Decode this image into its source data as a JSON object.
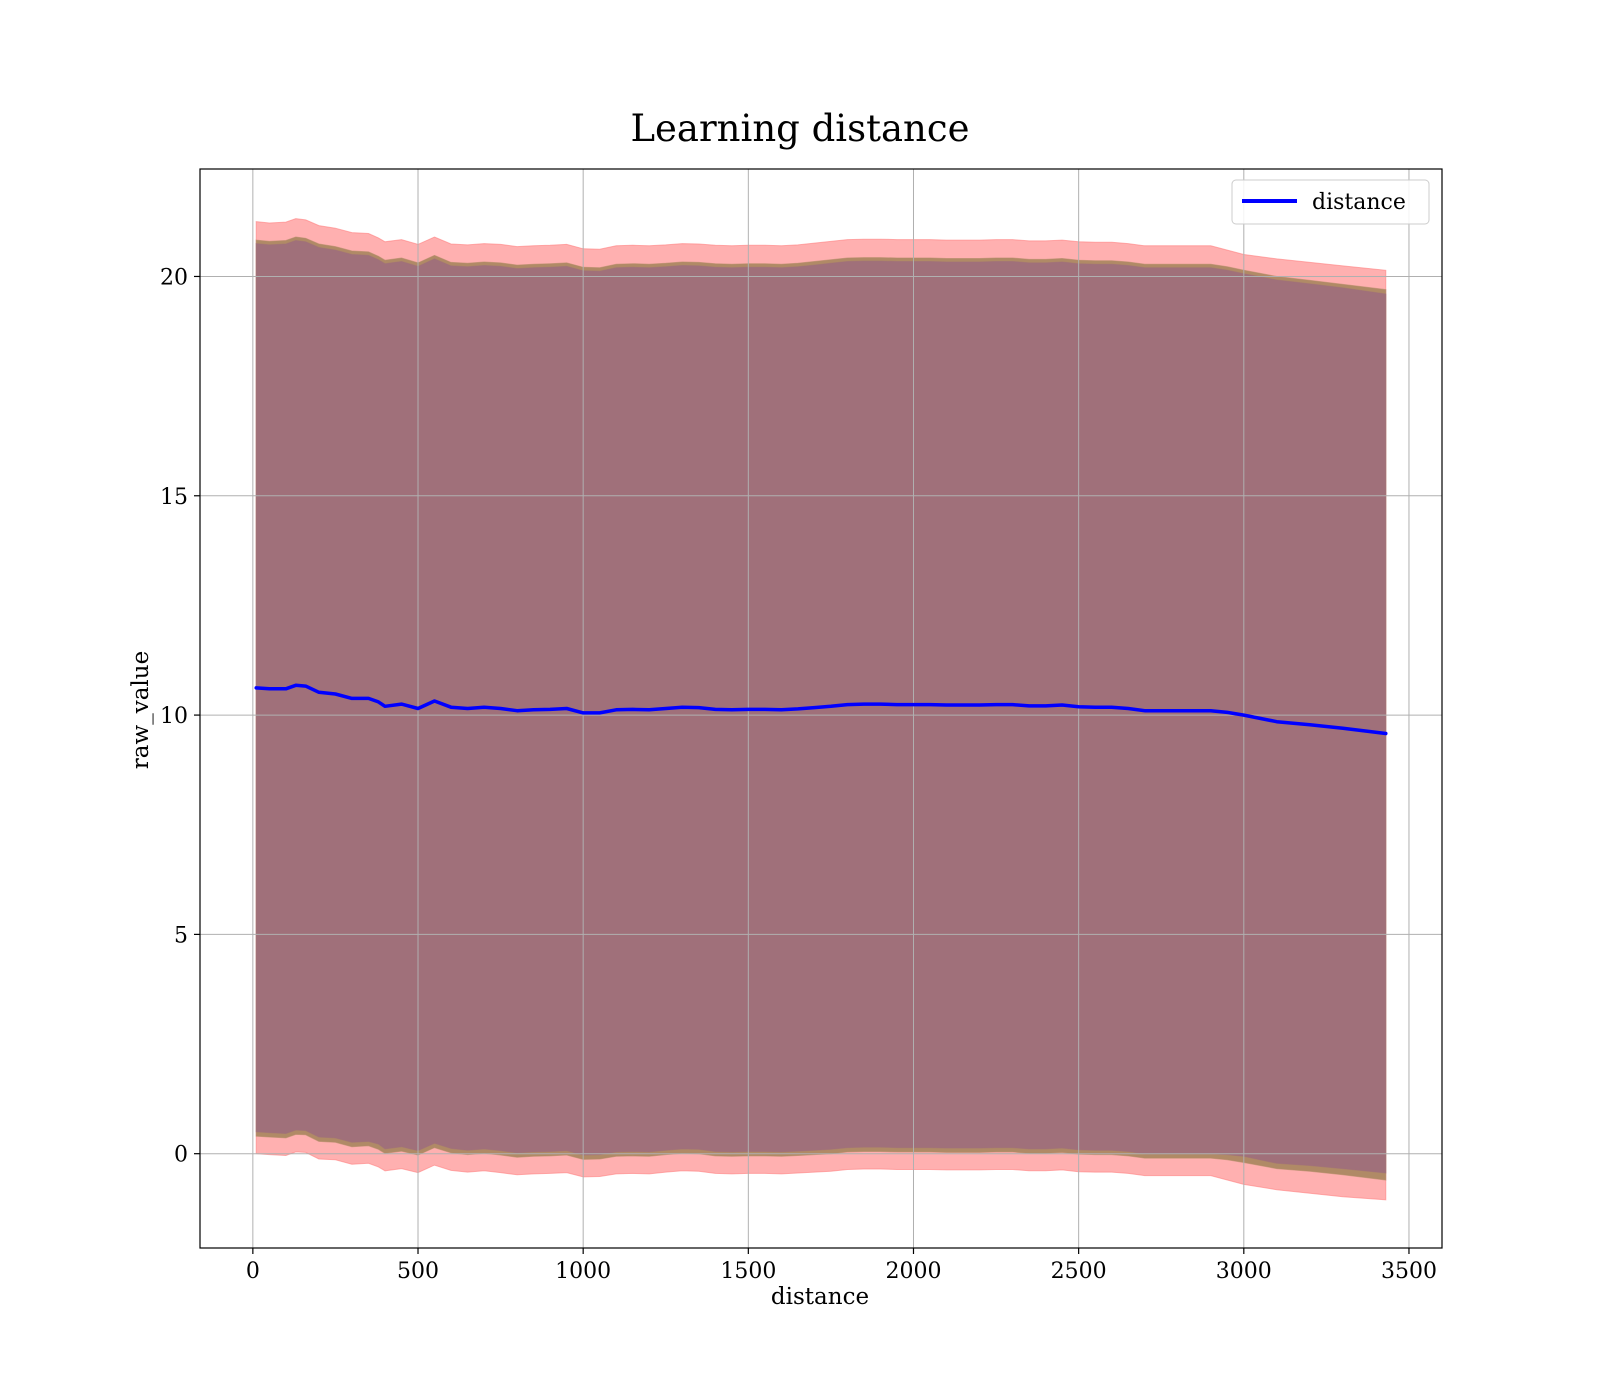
{
  "chart_data": {
    "type": "line",
    "title": "Learning distance",
    "xlabel": "distance",
    "ylabel": "raw_value",
    "xlim": [
      -160,
      3600
    ],
    "ylim": [
      -2.15,
      22.45
    ],
    "xticks": [
      0,
      500,
      1000,
      1500,
      2000,
      2500,
      3000,
      3500
    ],
    "yticks": [
      0,
      5,
      10,
      15,
      20
    ],
    "xtick_labels": [
      "0",
      "500",
      "1000",
      "1500",
      "2000",
      "2500",
      "3000",
      "3500"
    ],
    "ytick_labels": [
      "0",
      "5",
      "10",
      "15",
      "20"
    ],
    "grid": true,
    "legend": {
      "position": "top-right",
      "entries": [
        "distance"
      ]
    },
    "colors": {
      "line": "#0000ff",
      "outer_band": "#ff7f7f",
      "middle_band": "#b08a66",
      "inner_band": "#a0707a"
    },
    "series": [
      {
        "name": "distance",
        "x": [
          10,
          50,
          100,
          130,
          160,
          200,
          250,
          300,
          350,
          380,
          400,
          450,
          500,
          550,
          600,
          650,
          700,
          750,
          800,
          850,
          900,
          950,
          1000,
          1050,
          1100,
          1150,
          1200,
          1250,
          1300,
          1350,
          1400,
          1450,
          1500,
          1550,
          1600,
          1650,
          1700,
          1750,
          1800,
          1850,
          1900,
          1950,
          2000,
          2050,
          2100,
          2150,
          2200,
          2250,
          2300,
          2350,
          2400,
          2450,
          2500,
          2550,
          2600,
          2650,
          2700,
          2750,
          2800,
          2850,
          2900,
          2950,
          3000,
          3100,
          3200,
          3300,
          3430
        ],
        "y": [
          10.62,
          10.6,
          10.6,
          10.68,
          10.66,
          10.52,
          10.48,
          10.38,
          10.38,
          10.3,
          10.2,
          10.25,
          10.15,
          10.32,
          10.18,
          10.15,
          10.18,
          10.15,
          10.1,
          10.12,
          10.13,
          10.15,
          10.05,
          10.05,
          10.12,
          10.13,
          10.12,
          10.15,
          10.18,
          10.17,
          10.13,
          10.12,
          10.13,
          10.13,
          10.12,
          10.14,
          10.17,
          10.2,
          10.24,
          10.25,
          10.25,
          10.24,
          10.24,
          10.24,
          10.23,
          10.23,
          10.23,
          10.24,
          10.24,
          10.21,
          10.21,
          10.23,
          10.19,
          10.18,
          10.18,
          10.15,
          10.1,
          10.1,
          10.1,
          10.1,
          10.1,
          10.06,
          10.0,
          9.85,
          9.78,
          9.7,
          9.58
        ],
        "upper_inner": [
          20.75,
          20.72,
          20.74,
          20.82,
          20.79,
          20.66,
          20.6,
          20.5,
          20.48,
          20.38,
          20.29,
          20.34,
          20.23,
          20.4,
          20.24,
          20.22,
          20.25,
          20.23,
          20.18,
          20.2,
          20.21,
          20.23,
          20.13,
          20.12,
          20.2,
          20.21,
          20.2,
          20.22,
          20.25,
          20.24,
          20.21,
          20.2,
          20.21,
          20.21,
          20.2,
          20.22,
          20.26,
          20.3,
          20.34,
          20.35,
          20.35,
          20.34,
          20.34,
          20.34,
          20.33,
          20.33,
          20.33,
          20.34,
          20.34,
          20.31,
          20.31,
          20.33,
          20.29,
          20.28,
          20.28,
          20.25,
          20.2,
          20.2,
          20.2,
          20.2,
          20.2,
          20.14,
          20.06,
          19.92,
          19.83,
          19.74,
          19.6
        ],
        "lower_inner": [
          0.5,
          0.48,
          0.46,
          0.54,
          0.53,
          0.38,
          0.36,
          0.26,
          0.28,
          0.22,
          0.11,
          0.16,
          0.07,
          0.24,
          0.12,
          0.08,
          0.11,
          0.07,
          0.02,
          0.04,
          0.05,
          0.07,
          -0.03,
          -0.02,
          0.04,
          0.05,
          0.04,
          0.08,
          0.11,
          0.1,
          0.05,
          0.04,
          0.05,
          0.05,
          0.04,
          0.06,
          0.08,
          0.1,
          0.14,
          0.15,
          0.15,
          0.14,
          0.14,
          0.14,
          0.13,
          0.13,
          0.13,
          0.14,
          0.14,
          0.11,
          0.11,
          0.13,
          0.09,
          0.08,
          0.08,
          0.05,
          0.0,
          0.0,
          0.0,
          0.0,
          0.0,
          -0.02,
          -0.06,
          -0.22,
          -0.27,
          -0.34,
          -0.44
        ],
        "upper_middle": [
          20.83,
          20.8,
          20.82,
          20.9,
          20.87,
          20.74,
          20.68,
          20.58,
          20.56,
          20.46,
          20.37,
          20.42,
          20.31,
          20.48,
          20.32,
          20.3,
          20.33,
          20.31,
          20.26,
          20.28,
          20.29,
          20.31,
          20.21,
          20.2,
          20.28,
          20.29,
          20.28,
          20.3,
          20.33,
          20.32,
          20.29,
          20.28,
          20.29,
          20.29,
          20.28,
          20.3,
          20.34,
          20.38,
          20.42,
          20.43,
          20.43,
          20.42,
          20.42,
          20.42,
          20.41,
          20.41,
          20.41,
          20.42,
          20.42,
          20.39,
          20.39,
          20.41,
          20.37,
          20.36,
          20.36,
          20.33,
          20.28,
          20.28,
          20.28,
          20.28,
          20.28,
          20.22,
          20.14,
          20.0,
          19.91,
          19.82,
          19.7
        ],
        "lower_middle": [
          0.4,
          0.38,
          0.36,
          0.44,
          0.43,
          0.28,
          0.26,
          0.16,
          0.18,
          0.1,
          0.01,
          0.06,
          -0.03,
          0.14,
          0.02,
          -0.02,
          0.01,
          -0.03,
          -0.08,
          -0.06,
          -0.05,
          -0.03,
          -0.13,
          -0.12,
          -0.06,
          -0.05,
          -0.06,
          -0.02,
          0.01,
          0.0,
          -0.05,
          -0.06,
          -0.05,
          -0.05,
          -0.06,
          -0.04,
          -0.02,
          0.0,
          0.04,
          0.05,
          0.05,
          0.04,
          0.04,
          0.04,
          0.03,
          0.03,
          0.03,
          0.04,
          0.04,
          0.01,
          0.01,
          0.03,
          -0.01,
          -0.02,
          -0.02,
          -0.05,
          -0.1,
          -0.1,
          -0.1,
          -0.1,
          -0.1,
          -0.14,
          -0.2,
          -0.34,
          -0.4,
          -0.48,
          -0.6
        ],
        "upper_outer": [
          21.25,
          21.22,
          21.24,
          21.32,
          21.29,
          21.16,
          21.1,
          21.0,
          20.98,
          20.88,
          20.79,
          20.84,
          20.73,
          20.9,
          20.74,
          20.72,
          20.75,
          20.73,
          20.68,
          20.7,
          20.71,
          20.73,
          20.63,
          20.62,
          20.7,
          20.71,
          20.7,
          20.72,
          20.75,
          20.74,
          20.71,
          20.7,
          20.71,
          20.71,
          20.7,
          20.72,
          20.76,
          20.8,
          20.84,
          20.85,
          20.85,
          20.84,
          20.84,
          20.84,
          20.83,
          20.83,
          20.83,
          20.84,
          20.84,
          20.81,
          20.81,
          20.83,
          20.79,
          20.78,
          20.78,
          20.75,
          20.7,
          20.7,
          20.7,
          20.7,
          20.7,
          20.6,
          20.5,
          20.4,
          20.32,
          20.24,
          20.14
        ],
        "lower_outer": [
          0.0,
          -0.02,
          -0.04,
          0.04,
          0.03,
          -0.12,
          -0.14,
          -0.24,
          -0.22,
          -0.3,
          -0.39,
          -0.34,
          -0.43,
          -0.26,
          -0.38,
          -0.42,
          -0.39,
          -0.43,
          -0.48,
          -0.46,
          -0.45,
          -0.43,
          -0.53,
          -0.52,
          -0.46,
          -0.45,
          -0.46,
          -0.42,
          -0.39,
          -0.4,
          -0.45,
          -0.46,
          -0.45,
          -0.45,
          -0.46,
          -0.44,
          -0.42,
          -0.4,
          -0.36,
          -0.35,
          -0.35,
          -0.36,
          -0.36,
          -0.36,
          -0.37,
          -0.37,
          -0.37,
          -0.36,
          -0.36,
          -0.39,
          -0.39,
          -0.37,
          -0.41,
          -0.42,
          -0.42,
          -0.45,
          -0.5,
          -0.5,
          -0.5,
          -0.5,
          -0.5,
          -0.6,
          -0.7,
          -0.82,
          -0.9,
          -0.98,
          -1.05
        ]
      }
    ]
  }
}
